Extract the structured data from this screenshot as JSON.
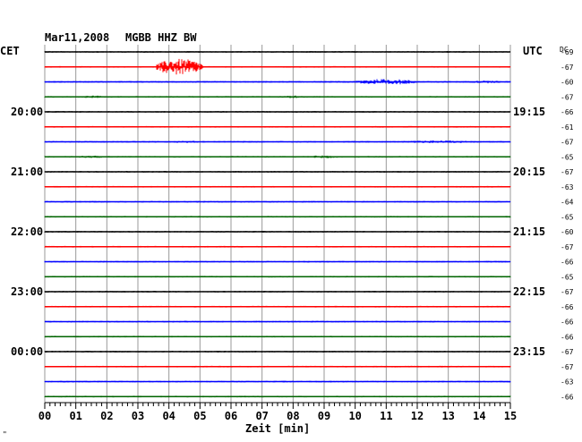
{
  "header": {
    "date": "Mar11,2008",
    "station": "MGBB HHZ BW",
    "left_tz": "CET",
    "right_tz": "UTC",
    "dc_label": "DC"
  },
  "footer": {
    "xlabel": "Zeit [min]",
    "corner_mark": "\""
  },
  "chart_data": {
    "type": "line",
    "title": "Mar11,2008   MGBB HHZ BW",
    "xlabel": "Zeit [min]",
    "xlim": [
      0,
      15
    ],
    "x_ticks": [
      "00",
      "01",
      "02",
      "03",
      "04",
      "05",
      "06",
      "07",
      "08",
      "09",
      "10",
      "11",
      "12",
      "13",
      "14",
      "15"
    ],
    "left_time_labels": [
      {
        "row": 4,
        "label": "20:00"
      },
      {
        "row": 8,
        "label": "21:00"
      },
      {
        "row": 12,
        "label": "22:00"
      },
      {
        "row": 16,
        "label": "23:00"
      },
      {
        "row": 20,
        "label": "00:00"
      }
    ],
    "right_time_labels": [
      {
        "row": 4,
        "label": "19:15"
      },
      {
        "row": 8,
        "label": "20:15"
      },
      {
        "row": 12,
        "label": "21:15"
      },
      {
        "row": 16,
        "label": "22:15"
      },
      {
        "row": 20,
        "label": "23:15"
      }
    ],
    "dc_offsets": [
      -69,
      -67,
      -60,
      -67,
      -66,
      -61,
      -67,
      -65,
      -67,
      -63,
      -64,
      -65,
      -60,
      -67,
      -66,
      -65,
      -67,
      -66,
      -66,
      -66,
      -67,
      -67,
      -63,
      -66
    ],
    "color_cycle": [
      "#000000",
      "#ff0000",
      "#0000ff",
      "#006400"
    ],
    "events": [
      {
        "row": 1,
        "start_min": 3.6,
        "end_min": 5.1,
        "amplitude": "strong"
      },
      {
        "row": 2,
        "start_min": 10.0,
        "end_min": 12.0,
        "amplitude": "moderate"
      },
      {
        "row": 2,
        "start_min": 13.6,
        "end_min": 14.8,
        "amplitude": "weak"
      },
      {
        "row": 3,
        "start_min": 1.2,
        "end_min": 1.9,
        "amplitude": "weak"
      },
      {
        "row": 3,
        "start_min": 7.7,
        "end_min": 8.3,
        "amplitude": "weak"
      },
      {
        "row": 6,
        "start_min": 4.0,
        "end_min": 5.0,
        "amplitude": "weak"
      },
      {
        "row": 6,
        "start_min": 11.5,
        "end_min": 14.0,
        "amplitude": "weak"
      },
      {
        "row": 7,
        "start_min": 1.0,
        "end_min": 2.0,
        "amplitude": "weak"
      },
      {
        "row": 7,
        "start_min": 8.5,
        "end_min": 9.5,
        "amplitude": "weak"
      }
    ],
    "grid": true,
    "rows": 24
  }
}
